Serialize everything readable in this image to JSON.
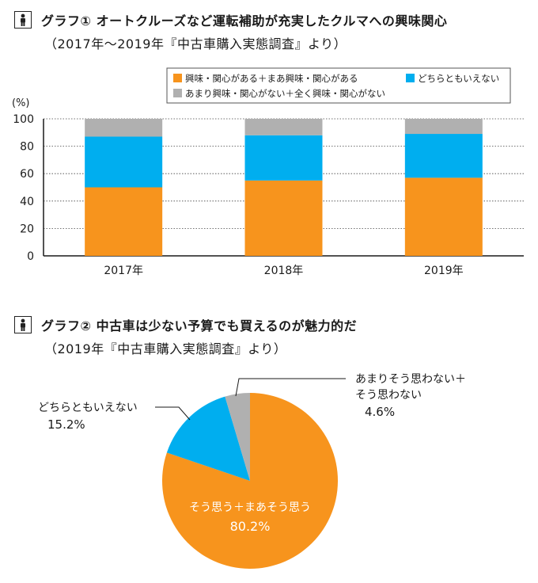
{
  "chart1": {
    "title": "グラフ① オートクルーズなど運転補助が充実したクルマへの興味関心",
    "subtitle": "（2017年～2019年『中古車購入実態調査』より）",
    "chart_data": {
      "type": "bar",
      "stacked": true,
      "categories": [
        "2017年",
        "2018年",
        "2019年"
      ],
      "series": [
        {
          "name": "興味・関心がある＋まあ興味・関心がある",
          "color": "#f7941d",
          "values": [
            50,
            55,
            57
          ]
        },
        {
          "name": "どちらともいえない",
          "color": "#00aeef",
          "values": [
            37,
            33,
            32
          ]
        },
        {
          "name": "あまり興味・関心がない＋全く興味・関心がない",
          "color": "#b0b0b0",
          "values": [
            13,
            12,
            11
          ]
        }
      ],
      "ylabel": "(%)",
      "ylim": [
        0,
        100
      ],
      "yticks": [
        "0",
        "20",
        "40",
        "60",
        "80",
        "100"
      ],
      "legend_position": "top-right"
    }
  },
  "chart2": {
    "title": "グラフ② 中古車は少ない予算でも買えるのが魅力的だ",
    "subtitle": "（2019年『中古車購入実態調査』より）",
    "chart_data": {
      "type": "pie",
      "slices": [
        {
          "label": "そう思う＋まあそう思う",
          "value": 80.2,
          "value_text": "80.2%",
          "color": "#f7941d"
        },
        {
          "label": "どちらともいえない",
          "value": 15.2,
          "value_text": "15.2%",
          "color": "#00aeef"
        },
        {
          "label_lines": [
            "あまりそう思わない＋",
            "そう思わない"
          ],
          "value": 4.6,
          "value_text": "4.6%",
          "color": "#b0b0b0"
        }
      ]
    }
  }
}
